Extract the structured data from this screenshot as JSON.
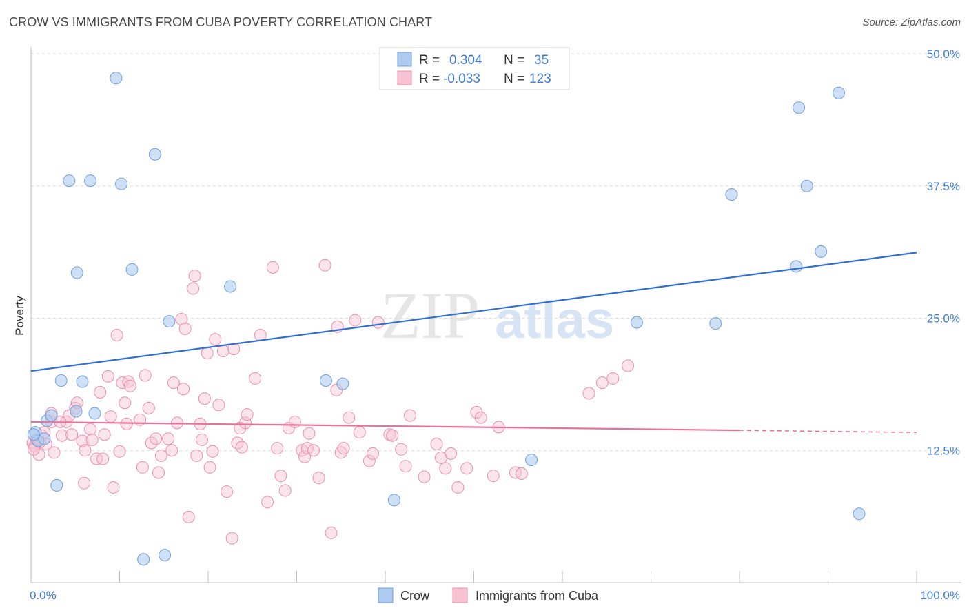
{
  "title": "CROW VS IMMIGRANTS FROM CUBA POVERTY CORRELATION CHART",
  "source": "Source: ZipAtlas.com",
  "watermark": {
    "zip": "ZIP",
    "atlas": "atlas"
  },
  "colors": {
    "crow_fill": "#aecbef",
    "crow_stroke": "#6f9fdc",
    "crow_line": "#2f6fd0",
    "cuba_fill": "#f7c3d3",
    "cuba_stroke": "#e98fab",
    "cuba_line": "#e8719b",
    "tick_blue": "#3f7bd1",
    "grid": "#d9d9d9"
  },
  "chart_data": {
    "type": "scatter",
    "title": "CROW VS IMMIGRANTS FROM CUBA POVERTY CORRELATION CHART",
    "xlabel": "",
    "ylabel": "Poverty",
    "xlim": [
      0,
      100
    ],
    "ylim": [
      0,
      50
    ],
    "x_tick_labels": [
      "0.0%",
      "100.0%"
    ],
    "y_ticks": [
      12.5,
      25.0,
      37.5,
      50.0
    ],
    "y_tick_labels": [
      "12.5%",
      "25.0%",
      "37.5%",
      "50.0%"
    ],
    "grid": true,
    "legend": {
      "placement": "top-center",
      "rows": [
        {
          "r_label": "R =",
          "r_value": "0.304",
          "n_label": "N =",
          "n_value": "35"
        },
        {
          "r_label": "R =",
          "r_value": "-0.033",
          "n_label": "N =",
          "n_value": "123"
        }
      ]
    },
    "series": [
      {
        "name": "Crow",
        "trend": {
          "x": [
            0,
            100
          ],
          "y": [
            20.0,
            31.2
          ],
          "solid_to": 100
        },
        "points": [
          [
            0.5,
            14.2
          ],
          [
            0.8,
            13.4
          ],
          [
            1.8,
            15.3
          ],
          [
            2.3,
            15.8
          ],
          [
            3.4,
            19.1
          ],
          [
            4.3,
            38.0
          ],
          [
            5.1,
            16.2
          ],
          [
            5.2,
            29.3
          ],
          [
            5.8,
            19.0
          ],
          [
            6.7,
            38.0
          ],
          [
            7.2,
            16.0
          ],
          [
            9.6,
            47.7
          ],
          [
            10.2,
            37.7
          ],
          [
            11.4,
            29.6
          ],
          [
            12.7,
            2.2
          ],
          [
            14.0,
            40.5
          ],
          [
            15.1,
            2.6
          ],
          [
            15.6,
            24.7
          ],
          [
            22.5,
            28.0
          ],
          [
            33.3,
            19.1
          ],
          [
            35.2,
            18.8
          ],
          [
            41.0,
            7.8
          ],
          [
            56.5,
            11.6
          ],
          [
            68.4,
            24.6
          ],
          [
            79.1,
            36.7
          ],
          [
            77.3,
            24.5
          ],
          [
            86.4,
            29.9
          ],
          [
            86.7,
            44.9
          ],
          [
            87.6,
            37.5
          ],
          [
            89.2,
            31.3
          ],
          [
            91.2,
            46.3
          ],
          [
            93.5,
            6.5
          ],
          [
            1.5,
            13.6
          ],
          [
            2.9,
            9.2
          ],
          [
            0.3,
            14.0
          ]
        ]
      },
      {
        "name": "Immigrants from Cuba",
        "trend": {
          "x": [
            0,
            100
          ],
          "y": [
            15.2,
            14.2
          ],
          "solid_to": 80
        },
        "points": [
          [
            0.2,
            13.2
          ],
          [
            0.4,
            12.9
          ],
          [
            0.6,
            13.5
          ],
          [
            0.9,
            12.1
          ],
          [
            1.2,
            13.9
          ],
          [
            1.5,
            14.2
          ],
          [
            1.7,
            13.1
          ],
          [
            2.3,
            15.2
          ],
          [
            2.3,
            16.0
          ],
          [
            2.6,
            12.3
          ],
          [
            3.3,
            15.2
          ],
          [
            3.5,
            13.9
          ],
          [
            4.0,
            15.2
          ],
          [
            4.3,
            15.8
          ],
          [
            4.6,
            14.0
          ],
          [
            5.0,
            16.5
          ],
          [
            5.2,
            17.0
          ],
          [
            5.8,
            13.4
          ],
          [
            6.0,
            9.4
          ],
          [
            6.1,
            12.5
          ],
          [
            6.7,
            14.5
          ],
          [
            6.9,
            13.5
          ],
          [
            7.4,
            11.7
          ],
          [
            7.8,
            18.0
          ],
          [
            8.1,
            11.7
          ],
          [
            8.3,
            14.0
          ],
          [
            8.7,
            19.5
          ],
          [
            9.0,
            15.7
          ],
          [
            9.3,
            9.0
          ],
          [
            9.7,
            23.4
          ],
          [
            10.0,
            12.4
          ],
          [
            10.3,
            18.9
          ],
          [
            10.6,
            17.0
          ],
          [
            10.8,
            15.0
          ],
          [
            11.0,
            19.0
          ],
          [
            11.2,
            18.6
          ],
          [
            12.3,
            15.4
          ],
          [
            12.6,
            10.9
          ],
          [
            12.9,
            19.6
          ],
          [
            13.3,
            16.5
          ],
          [
            13.6,
            13.2
          ],
          [
            14.1,
            13.6
          ],
          [
            14.4,
            10.4
          ],
          [
            14.7,
            12.0
          ],
          [
            15.5,
            13.6
          ],
          [
            15.9,
            12.5
          ],
          [
            16.1,
            18.9
          ],
          [
            16.5,
            15.1
          ],
          [
            17.0,
            24.9
          ],
          [
            17.2,
            18.3
          ],
          [
            17.4,
            24.0
          ],
          [
            17.8,
            6.2
          ],
          [
            18.3,
            27.8
          ],
          [
            18.5,
            29.0
          ],
          [
            18.7,
            12.0
          ],
          [
            19.1,
            15.0
          ],
          [
            19.3,
            13.5
          ],
          [
            19.6,
            17.4
          ],
          [
            19.9,
            21.7
          ],
          [
            20.2,
            10.9
          ],
          [
            20.5,
            12.4
          ],
          [
            20.8,
            23.0
          ],
          [
            21.2,
            16.8
          ],
          [
            21.7,
            21.9
          ],
          [
            22.1,
            8.6
          ],
          [
            22.7,
            4.2
          ],
          [
            22.9,
            22.1
          ],
          [
            23.3,
            13.2
          ],
          [
            23.6,
            14.6
          ],
          [
            23.8,
            12.8
          ],
          [
            24.2,
            15.1
          ],
          [
            24.4,
            15.9
          ],
          [
            25.3,
            19.3
          ],
          [
            25.9,
            23.4
          ],
          [
            26.7,
            7.6
          ],
          [
            27.3,
            29.8
          ],
          [
            27.8,
            12.7
          ],
          [
            28.2,
            10.1
          ],
          [
            28.7,
            8.7
          ],
          [
            29.1,
            14.6
          ],
          [
            29.8,
            15.2
          ],
          [
            30.6,
            12.5
          ],
          [
            30.9,
            11.9
          ],
          [
            31.2,
            12.7
          ],
          [
            31.4,
            14.1
          ],
          [
            31.9,
            12.5
          ],
          [
            32.5,
            9.9
          ],
          [
            33.2,
            30.0
          ],
          [
            33.9,
            4.7
          ],
          [
            34.5,
            18.2
          ],
          [
            34.6,
            24.2
          ],
          [
            35.0,
            12.3
          ],
          [
            35.3,
            12.7
          ],
          [
            35.9,
            15.6
          ],
          [
            36.6,
            24.8
          ],
          [
            37.1,
            14.2
          ],
          [
            38.2,
            11.5
          ],
          [
            38.6,
            12.2
          ],
          [
            39.2,
            24.6
          ],
          [
            40.5,
            14.0
          ],
          [
            40.8,
            13.9
          ],
          [
            41.8,
            12.6
          ],
          [
            42.3,
            11.0
          ],
          [
            42.8,
            15.8
          ],
          [
            44.4,
            10.0
          ],
          [
            45.8,
            13.1
          ],
          [
            46.3,
            11.8
          ],
          [
            46.8,
            10.8
          ],
          [
            47.4,
            12.2
          ],
          [
            48.2,
            9.0
          ],
          [
            49.2,
            10.8
          ],
          [
            50.3,
            16.1
          ],
          [
            50.8,
            15.6
          ],
          [
            52.2,
            10.1
          ],
          [
            52.8,
            14.7
          ],
          [
            54.7,
            10.4
          ],
          [
            55.4,
            10.3
          ],
          [
            63.0,
            17.9
          ],
          [
            64.5,
            18.9
          ],
          [
            65.7,
            19.3
          ],
          [
            67.4,
            20.5
          ],
          [
            0.3,
            12.6
          ],
          [
            1.0,
            13.3
          ]
        ]
      }
    ]
  },
  "bottom_legend": [
    {
      "label": "Crow"
    },
    {
      "label": "Immigrants from Cuba"
    }
  ]
}
